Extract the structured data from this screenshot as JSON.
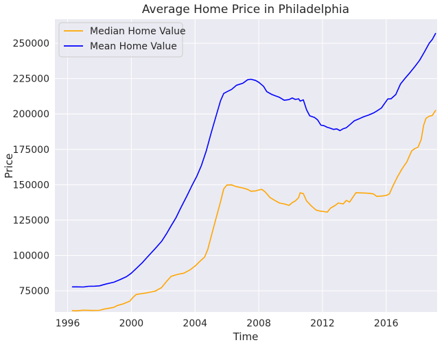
{
  "chart_data": {
    "type": "line",
    "title": "Average Home Price in Philadelphia",
    "xlabel": "Time",
    "ylabel": "Price",
    "xlim": [
      1995.2,
      2019.2
    ],
    "ylim": [
      60000,
      267000
    ],
    "x_ticks": [
      1996,
      2000,
      2004,
      2008,
      2012,
      2016
    ],
    "x_tick_labels": [
      "1996",
      "2000",
      "2004",
      "2008",
      "2012",
      "2016"
    ],
    "y_ticks": [
      75000,
      100000,
      125000,
      150000,
      175000,
      200000,
      225000,
      250000
    ],
    "y_tick_labels": [
      "75000",
      "100000",
      "125000",
      "150000",
      "175000",
      "200000",
      "225000",
      "250000"
    ],
    "grid": true,
    "legend": "top-left",
    "background": "#eaeaf2",
    "series": [
      {
        "name": "Median Home Value",
        "color": "#ffa500",
        "points": [
          [
            1996.3,
            61000
          ],
          [
            1996.5,
            60800
          ],
          [
            1997.0,
            61300
          ],
          [
            1997.5,
            61100
          ],
          [
            1998.0,
            61200
          ],
          [
            1998.3,
            62100
          ],
          [
            1998.9,
            63300
          ],
          [
            1999.1,
            64500
          ],
          [
            1999.5,
            65800
          ],
          [
            1999.9,
            67700
          ],
          [
            2000.1,
            70300
          ],
          [
            2000.3,
            72400
          ],
          [
            2000.7,
            73100
          ],
          [
            2001.0,
            73600
          ],
          [
            2001.5,
            74800
          ],
          [
            2001.9,
            77300
          ],
          [
            2002.2,
            81500
          ],
          [
            2002.5,
            85200
          ],
          [
            2002.9,
            86600
          ],
          [
            2003.3,
            87500
          ],
          [
            2003.7,
            89900
          ],
          [
            2004.0,
            92500
          ],
          [
            2004.3,
            95800
          ],
          [
            2004.6,
            98900
          ],
          [
            2004.8,
            104300
          ],
          [
            2005.0,
            112800
          ],
          [
            2005.3,
            125500
          ],
          [
            2005.6,
            138000
          ],
          [
            2005.8,
            147000
          ],
          [
            2006.0,
            149800
          ],
          [
            2006.3,
            149900
          ],
          [
            2006.6,
            148600
          ],
          [
            2007.0,
            147700
          ],
          [
            2007.3,
            146700
          ],
          [
            2007.5,
            145400
          ],
          [
            2007.8,
            145600
          ],
          [
            2008.0,
            146300
          ],
          [
            2008.2,
            146700
          ],
          [
            2008.4,
            144900
          ],
          [
            2008.7,
            141000
          ],
          [
            2009.0,
            138900
          ],
          [
            2009.3,
            137100
          ],
          [
            2009.6,
            136400
          ],
          [
            2009.9,
            135400
          ],
          [
            2010.1,
            137300
          ],
          [
            2010.3,
            138600
          ],
          [
            2010.5,
            140800
          ],
          [
            2010.6,
            144300
          ],
          [
            2010.8,
            143700
          ],
          [
            2011.0,
            138600
          ],
          [
            2011.3,
            135000
          ],
          [
            2011.6,
            132100
          ],
          [
            2011.9,
            131200
          ],
          [
            2012.1,
            131000
          ],
          [
            2012.3,
            130600
          ],
          [
            2012.5,
            133400
          ],
          [
            2012.8,
            135400
          ],
          [
            2013.0,
            137100
          ],
          [
            2013.3,
            136400
          ],
          [
            2013.5,
            138900
          ],
          [
            2013.7,
            137700
          ],
          [
            2013.9,
            141000
          ],
          [
            2014.1,
            144300
          ],
          [
            2014.4,
            144200
          ],
          [
            2014.7,
            144100
          ],
          [
            2015.0,
            143800
          ],
          [
            2015.2,
            143500
          ],
          [
            2015.4,
            141800
          ],
          [
            2015.7,
            142000
          ],
          [
            2016.0,
            142400
          ],
          [
            2016.2,
            143500
          ],
          [
            2016.4,
            148500
          ],
          [
            2016.7,
            155400
          ],
          [
            2017.0,
            161200
          ],
          [
            2017.3,
            166200
          ],
          [
            2017.6,
            173900
          ],
          [
            2017.8,
            175500
          ],
          [
            2018.0,
            176500
          ],
          [
            2018.2,
            182000
          ],
          [
            2018.35,
            192000
          ],
          [
            2018.5,
            197000
          ],
          [
            2018.7,
            198400
          ],
          [
            2018.9,
            199000
          ],
          [
            2019.1,
            202500
          ]
        ]
      },
      {
        "name": "Mean Home Value",
        "color": "#0000ff",
        "points": [
          [
            1996.3,
            77800
          ],
          [
            1996.6,
            77800
          ],
          [
            1997.0,
            77700
          ],
          [
            1997.3,
            78200
          ],
          [
            1997.7,
            78300
          ],
          [
            1998.0,
            78500
          ],
          [
            1998.4,
            79800
          ],
          [
            1998.9,
            81100
          ],
          [
            1999.3,
            83000
          ],
          [
            1999.7,
            85000
          ],
          [
            2000.0,
            87500
          ],
          [
            2000.3,
            90700
          ],
          [
            2000.7,
            95000
          ],
          [
            2001.0,
            98800
          ],
          [
            2001.5,
            104900
          ],
          [
            2001.9,
            110000
          ],
          [
            2002.2,
            115200
          ],
          [
            2002.5,
            121000
          ],
          [
            2002.8,
            126600
          ],
          [
            2003.1,
            133500
          ],
          [
            2003.5,
            142300
          ],
          [
            2003.8,
            149300
          ],
          [
            2004.1,
            155800
          ],
          [
            2004.4,
            163600
          ],
          [
            2004.7,
            173800
          ],
          [
            2005.0,
            186100
          ],
          [
            2005.3,
            197800
          ],
          [
            2005.6,
            209400
          ],
          [
            2005.8,
            214500
          ],
          [
            2006.0,
            215700
          ],
          [
            2006.3,
            217400
          ],
          [
            2006.6,
            220300
          ],
          [
            2007.0,
            221700
          ],
          [
            2007.3,
            224200
          ],
          [
            2007.5,
            224600
          ],
          [
            2007.8,
            223700
          ],
          [
            2008.0,
            222400
          ],
          [
            2008.3,
            219600
          ],
          [
            2008.5,
            215800
          ],
          [
            2008.8,
            213900
          ],
          [
            2009.0,
            213000
          ],
          [
            2009.3,
            211800
          ],
          [
            2009.6,
            209700
          ],
          [
            2009.9,
            210200
          ],
          [
            2010.1,
            211300
          ],
          [
            2010.3,
            210300
          ],
          [
            2010.5,
            210700
          ],
          [
            2010.6,
            209100
          ],
          [
            2010.8,
            210000
          ],
          [
            2011.0,
            203000
          ],
          [
            2011.2,
            198700
          ],
          [
            2011.5,
            197600
          ],
          [
            2011.7,
            195800
          ],
          [
            2011.9,
            192100
          ],
          [
            2012.1,
            191700
          ],
          [
            2012.3,
            190600
          ],
          [
            2012.5,
            189900
          ],
          [
            2012.7,
            189100
          ],
          [
            2012.9,
            189500
          ],
          [
            2013.1,
            188200
          ],
          [
            2013.3,
            189600
          ],
          [
            2013.5,
            190300
          ],
          [
            2013.8,
            193200
          ],
          [
            2014.0,
            195200
          ],
          [
            2014.3,
            196600
          ],
          [
            2014.6,
            198100
          ],
          [
            2014.9,
            199300
          ],
          [
            2015.2,
            200700
          ],
          [
            2015.4,
            202000
          ],
          [
            2015.7,
            204200
          ],
          [
            2015.9,
            207400
          ],
          [
            2016.1,
            210600
          ],
          [
            2016.3,
            210700
          ],
          [
            2016.6,
            213700
          ],
          [
            2016.9,
            221200
          ],
          [
            2017.2,
            225400
          ],
          [
            2017.5,
            229300
          ],
          [
            2017.8,
            233500
          ],
          [
            2018.1,
            238000
          ],
          [
            2018.4,
            243800
          ],
          [
            2018.7,
            250000
          ],
          [
            2018.9,
            252700
          ],
          [
            2019.1,
            256900
          ]
        ]
      }
    ]
  }
}
